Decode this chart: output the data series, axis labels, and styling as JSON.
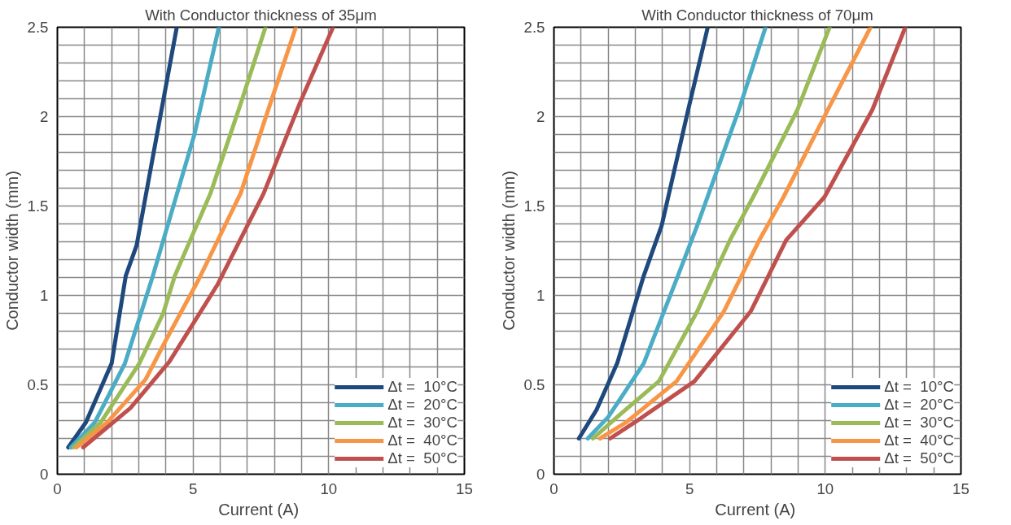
{
  "chart_data": [
    {
      "type": "line",
      "title": "With Conductor thickness of 35μm",
      "xlabel": "Current  (A)",
      "ylabel": "Conductor width (mm)",
      "xlim": [
        0,
        15
      ],
      "ylim": [
        0,
        2.5
      ],
      "xticks": [
        0,
        5,
        10,
        15
      ],
      "yticks": [
        0,
        0.5,
        1,
        1.5,
        2,
        2.5
      ],
      "grid": true,
      "legend": "bottom right",
      "line_style": "solid",
      "series": [
        {
          "name": "Δt =  10°C",
          "color": "#1f497d",
          "x": [
            0.4,
            1.05,
            2.0,
            2.52,
            2.92,
            3.67,
            4.4
          ],
          "values": [
            0.15,
            0.29,
            0.62,
            1.11,
            1.28,
            1.9,
            2.5
          ]
        },
        {
          "name": "Δt =  20°C",
          "color": "#4bacc6",
          "x": [
            0.5,
            1.38,
            2.49,
            3.5,
            5.05,
            5.95
          ],
          "values": [
            0.15,
            0.29,
            0.62,
            1.1,
            1.9,
            2.5
          ]
        },
        {
          "name": "Δt =  30°C",
          "color": "#9bbb59",
          "x": [
            0.6,
            1.6,
            3.02,
            3.9,
            4.33,
            5.64,
            6.75,
            7.67
          ],
          "values": [
            0.15,
            0.29,
            0.62,
            0.9,
            1.11,
            1.57,
            2.07,
            2.5
          ]
        },
        {
          "name": "Δt =  40°C",
          "color": "#f79646",
          "x": [
            0.7,
            1.84,
            3.25,
            4.0,
            5.21,
            6.75,
            7.84,
            8.79
          ],
          "values": [
            0.15,
            0.29,
            0.53,
            0.75,
            1.09,
            1.57,
            2.07,
            2.5
          ]
        },
        {
          "name": "Δt =  50°C",
          "color": "#c0504d",
          "x": [
            0.95,
            2.69,
            4.13,
            5.9,
            7.6,
            8.92,
            10.16
          ],
          "values": [
            0.15,
            0.37,
            0.63,
            1.06,
            1.57,
            2.07,
            2.5
          ]
        }
      ]
    },
    {
      "type": "line",
      "title": "With Conductor thickness of 70μm",
      "xlabel": "Current  (A)",
      "ylabel": "Conductor width (mm)",
      "xlim": [
        0,
        15
      ],
      "ylim": [
        0,
        2.5
      ],
      "xticks": [
        0,
        5,
        10,
        15
      ],
      "yticks": [
        0,
        0.5,
        1,
        1.5,
        2,
        2.5
      ],
      "grid": true,
      "legend": "bottom right",
      "line_style": "solid",
      "series": [
        {
          "name": "Δt =  10°C",
          "color": "#1f497d",
          "x": [
            0.92,
            1.57,
            2.33,
            3.31,
            3.97,
            4.95,
            5.67
          ],
          "values": [
            0.2,
            0.36,
            0.62,
            1.11,
            1.39,
            2.04,
            2.5
          ]
        },
        {
          "name": "Δt =  20°C",
          "color": "#4bacc6",
          "x": [
            1.25,
            2.0,
            3.31,
            4.52,
            5.28,
            6.82,
            7.8
          ],
          "values": [
            0.2,
            0.32,
            0.62,
            1.09,
            1.39,
            2.04,
            2.5
          ]
        },
        {
          "name": "Δt =  30°C",
          "color": "#9bbb59",
          "x": [
            1.44,
            2.33,
            3.87,
            5.28,
            6.49,
            7.34,
            8.98,
            10.16
          ],
          "values": [
            0.2,
            0.32,
            0.52,
            0.91,
            1.31,
            1.55,
            2.04,
            2.5
          ]
        },
        {
          "name": "Δt =  40°C",
          "color": "#f79646",
          "x": [
            1.7,
            2.66,
            4.52,
            6.26,
            7.57,
            8.46,
            10.1,
            11.67
          ],
          "values": [
            0.2,
            0.29,
            0.52,
            0.91,
            1.31,
            1.55,
            2.04,
            2.5
          ]
        },
        {
          "name": "Δt =  50°C",
          "color": "#c0504d",
          "x": [
            2.07,
            2.98,
            5.18,
            7.25,
            8.56,
            9.97,
            11.74,
            12.95
          ],
          "values": [
            0.2,
            0.29,
            0.52,
            0.91,
            1.31,
            1.55,
            2.04,
            2.5
          ]
        }
      ]
    }
  ]
}
